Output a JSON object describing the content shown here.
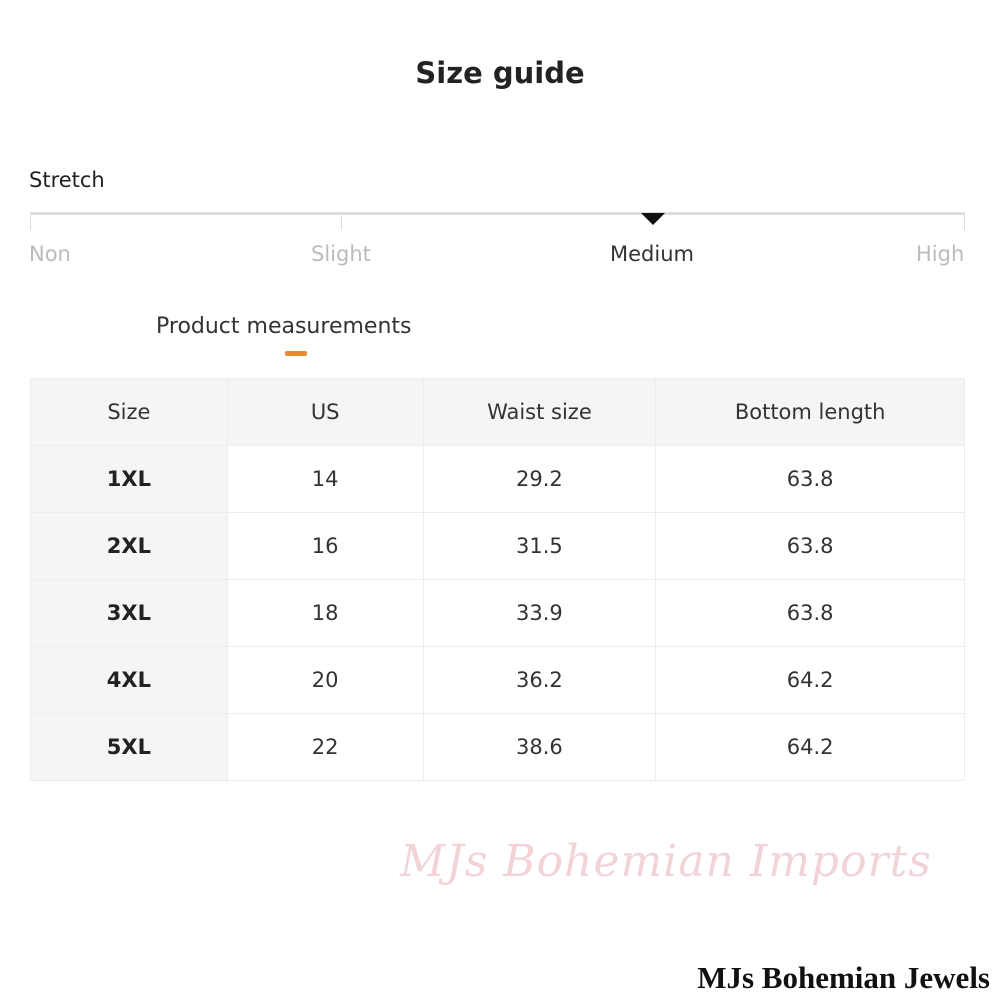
{
  "title": "Size guide",
  "stretch": {
    "label": "Stretch",
    "levels": [
      "Non",
      "Slight",
      "Medium",
      "High"
    ],
    "selected": "Medium"
  },
  "section": {
    "label": "Product measurements",
    "accent": "#e8892c"
  },
  "table": {
    "headers": [
      "Size",
      "US",
      "Waist size",
      "Bottom length"
    ],
    "rows": [
      [
        "1XL",
        "14",
        "29.2",
        "63.8"
      ],
      [
        "2XL",
        "16",
        "31.5",
        "63.8"
      ],
      [
        "3XL",
        "18",
        "33.9",
        "63.8"
      ],
      [
        "4XL",
        "20",
        "36.2",
        "64.2"
      ],
      [
        "5XL",
        "22",
        "38.6",
        "64.2"
      ]
    ]
  },
  "watermark": "MJs Bohemian Imports",
  "brand": "MJs Bohemian Jewels"
}
